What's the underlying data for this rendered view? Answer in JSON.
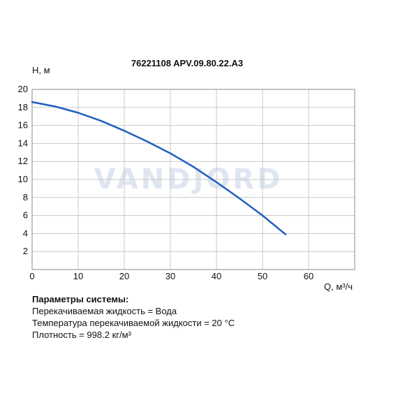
{
  "watermark": "VANDJORD",
  "chart_data": {
    "type": "line",
    "title": "76221108 APV.09.80.22.A3",
    "xlabel": "Q, м³/ч",
    "ylabel": "H, м",
    "xlim": [
      0,
      70
    ],
    "ylim": [
      0,
      20
    ],
    "x_ticks": [
      0,
      10,
      20,
      30,
      40,
      50,
      60
    ],
    "y_ticks": [
      2,
      4,
      6,
      8,
      10,
      12,
      14,
      16,
      18,
      20
    ],
    "grid": true,
    "series": [
      {
        "color": "#1f5fbf",
        "x": [
          0,
          5,
          10,
          15,
          20,
          25,
          30,
          35,
          40,
          45,
          50,
          55
        ],
        "y": [
          18.6,
          18.1,
          17.4,
          16.5,
          15.4,
          14.2,
          12.9,
          11.4,
          9.7,
          7.9,
          6.0,
          3.9
        ]
      }
    ]
  },
  "params": {
    "heading": "Параметры системы:",
    "lines": [
      "Перекачиваемая жидкость = Вода",
      "Температура перекачиваемой жидкости = 20 °C",
      "Плотность = 998.2 кг/м³"
    ]
  }
}
